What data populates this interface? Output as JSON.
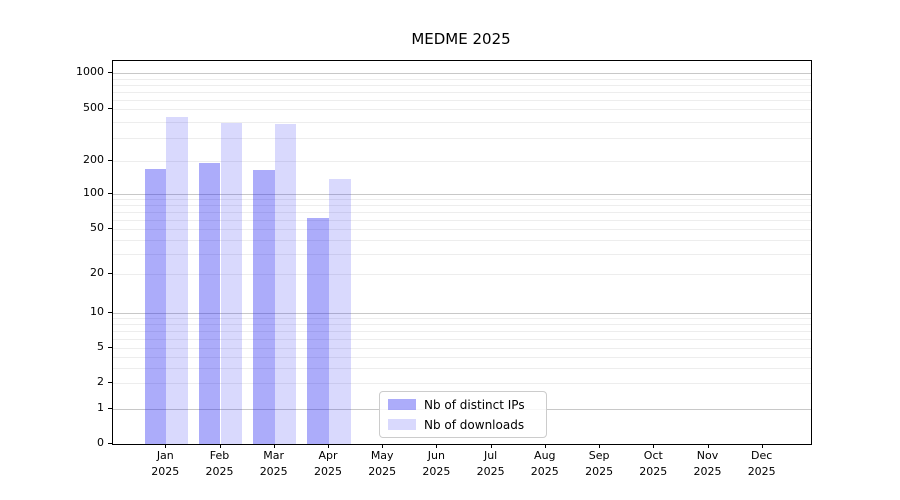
{
  "chart_data": {
    "type": "bar",
    "title": "MEDME 2025",
    "categories": [
      "Jan",
      "Feb",
      "Mar",
      "Apr",
      "May",
      "Jun",
      "Jul",
      "Aug",
      "Sep",
      "Oct",
      "Nov",
      "Dec"
    ],
    "category_year": "2025",
    "series": [
      {
        "name": "Nb of distinct IPs",
        "color": "rgba(25,25,240,0.36)",
        "values": [
          168,
          190,
          165,
          62,
          0,
          0,
          0,
          0,
          0,
          0,
          0,
          0
        ]
      },
      {
        "name": "Nb of downloads",
        "color": "rgba(25,25,240,0.165)",
        "values": [
          435,
          390,
          385,
          138,
          0,
          0,
          0,
          0,
          0,
          0,
          0,
          0
        ]
      }
    ],
    "y_axis": {
      "scale": "symlog",
      "tick_values": [
        0,
        1,
        2,
        5,
        10,
        20,
        50,
        100,
        200,
        500,
        1000
      ],
      "major_grid_values": [
        1,
        10,
        100,
        1000
      ],
      "minor_grid_values": [
        2,
        3,
        4,
        5,
        6,
        7,
        8,
        9,
        20,
        30,
        40,
        50,
        60,
        70,
        80,
        90,
        200,
        300,
        400,
        500,
        600,
        700,
        800,
        900
      ]
    },
    "ylim": [
      0,
      1000
    ],
    "grid": true,
    "legend_position": "lower center"
  },
  "colors": {
    "bar_distinct_ips": "rgba(25,25,240,0.36)",
    "bar_downloads": "rgba(25,25,240,0.165)",
    "grid_major": "#c8c8c8",
    "grid_minor": "#ededed",
    "spine": "#000000",
    "background": "#ffffff"
  }
}
